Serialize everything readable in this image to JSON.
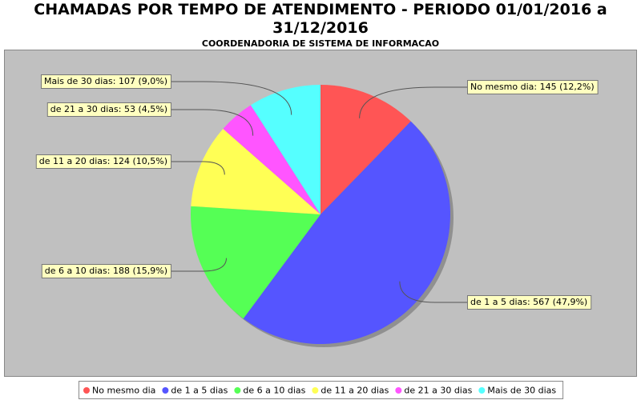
{
  "chart_data": {
    "type": "pie",
    "title": "CHAMADAS POR TEMPO DE ATENDIMENTO - PERIODO 01/01/2016 a 31/12/2016",
    "subtitle": "COORDENADORIA DE SISTEMA DE INFORMACAO",
    "categories": [
      "No mesmo dia",
      "de 1 a 5 dias",
      "de 6 a 10 dias",
      "de 11 a 20 dias",
      "de 21 a 30 dias",
      "Mais de 30 dias"
    ],
    "values": [
      145,
      567,
      188,
      124,
      53,
      107
    ],
    "value_labels": [
      "No mesmo dia: 145 (12,2%)",
      "de 1 a 5 dias: 567 (47,9%)",
      "de 6 a 10 dias: 188 (15,9%)",
      "de 11 a 20 dias: 124 (10,5%)",
      "de 21 a 30 dias: 53 (4,5%)",
      "Mais de 30 dias: 107 (9,0%)"
    ],
    "colors": [
      "#ff5555",
      "#5555ff",
      "#55ff55",
      "#ffff55",
      "#ff55ff",
      "#55ffff"
    ],
    "legend": "bottom"
  }
}
